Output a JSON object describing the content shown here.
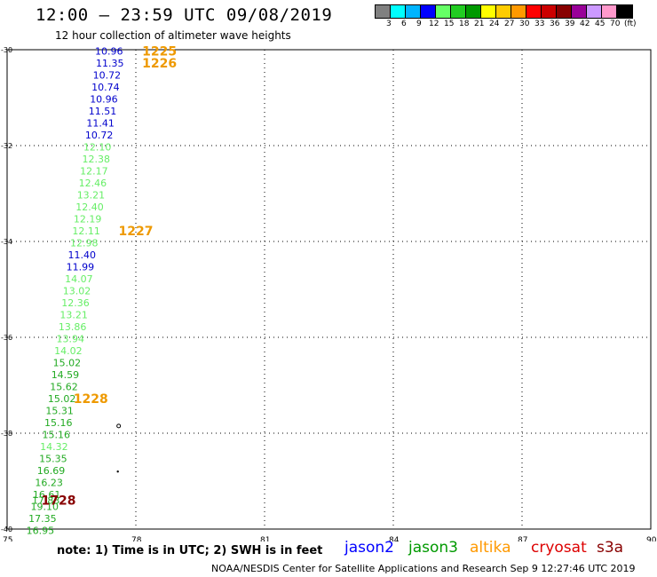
{
  "header": {
    "title": "12:00 — 23:59 UTC 09/08/2019",
    "subtitle": "12 hour collection of altimeter wave heights"
  },
  "legend": {
    "colors": [
      "#808080",
      "#00ffff",
      "#00b4ff",
      "#0000ff",
      "#66ff66",
      "#22cc22",
      "#009900",
      "#ffff00",
      "#ffcc00",
      "#ff9900",
      "#ff0000",
      "#cc0000",
      "#880000",
      "#990099",
      "#cc99ff",
      "#ff99cc",
      "#000000"
    ],
    "labels": [
      "3",
      "6",
      "9",
      "12",
      "15",
      "18",
      "21",
      "24",
      "27",
      "30",
      "33",
      "36",
      "39",
      "42",
      "45",
      "70",
      "(ft)"
    ]
  },
  "axes": {
    "lat_labels": [
      "-30",
      "-32",
      "-34",
      "-36",
      "-38",
      "-40"
    ],
    "lon_labels": [
      "75",
      "78",
      "81",
      "84",
      "87",
      "90"
    ]
  },
  "observations": [
    {
      "v": "10.96",
      "c": "#0000cc",
      "lon": 77.7,
      "lat": -30.03
    },
    {
      "v": "11.35",
      "c": "#0000cc",
      "lon": 77.72,
      "lat": -30.28
    },
    {
      "v": "10.72",
      "c": "#0000cc",
      "lon": 77.65,
      "lat": -30.53
    },
    {
      "v": "10.74",
      "c": "#0000cc",
      "lon": 77.62,
      "lat": -30.78
    },
    {
      "v": "10.96",
      "c": "#0000cc",
      "lon": 77.58,
      "lat": -31.03
    },
    {
      "v": "11.51",
      "c": "#0000cc",
      "lon": 77.55,
      "lat": -31.28
    },
    {
      "v": "11.41",
      "c": "#0000cc",
      "lon": 77.5,
      "lat": -31.53
    },
    {
      "v": "10.72",
      "c": "#0000cc",
      "lon": 77.47,
      "lat": -31.78
    },
    {
      "v": "12.10",
      "c": "#66ee66",
      "lon": 77.43,
      "lat": -32.03
    },
    {
      "v": "12.38",
      "c": "#66ee66",
      "lon": 77.4,
      "lat": -32.28
    },
    {
      "v": "12.17",
      "c": "#66ee66",
      "lon": 77.35,
      "lat": -32.53
    },
    {
      "v": "12.46",
      "c": "#66ee66",
      "lon": 77.32,
      "lat": -32.78
    },
    {
      "v": "13.21",
      "c": "#66ee66",
      "lon": 77.28,
      "lat": -33.03
    },
    {
      "v": "12.40",
      "c": "#66ee66",
      "lon": 77.25,
      "lat": -33.28
    },
    {
      "v": "12.19",
      "c": "#66ee66",
      "lon": 77.2,
      "lat": -33.53
    },
    {
      "v": "12.11",
      "c": "#66ee66",
      "lon": 77.17,
      "lat": -33.78
    },
    {
      "v": "12.98",
      "c": "#66ee66",
      "lon": 77.12,
      "lat": -34.03
    },
    {
      "v": "11.40",
      "c": "#0000cc",
      "lon": 77.07,
      "lat": -34.28
    },
    {
      "v": "11.99",
      "c": "#0000cc",
      "lon": 77.03,
      "lat": -34.53
    },
    {
      "v": "14.07",
      "c": "#66ee66",
      "lon": 77.0,
      "lat": -34.78
    },
    {
      "v": "13.02",
      "c": "#66ee66",
      "lon": 76.95,
      "lat": -35.03
    },
    {
      "v": "12.36",
      "c": "#66ee66",
      "lon": 76.92,
      "lat": -35.28
    },
    {
      "v": "13.21",
      "c": "#66ee66",
      "lon": 76.88,
      "lat": -35.53
    },
    {
      "v": "13.86",
      "c": "#66ee66",
      "lon": 76.85,
      "lat": -35.78
    },
    {
      "v": "13.94",
      "c": "#66ee66",
      "lon": 76.8,
      "lat": -36.03
    },
    {
      "v": "14.02",
      "c": "#66ee66",
      "lon": 76.75,
      "lat": -36.28
    },
    {
      "v": "15.02",
      "c": "#22aa22",
      "lon": 76.72,
      "lat": -36.53
    },
    {
      "v": "14.59",
      "c": "#22aa22",
      "lon": 76.68,
      "lat": -36.78
    },
    {
      "v": "15.62",
      "c": "#22aa22",
      "lon": 76.65,
      "lat": -37.03
    },
    {
      "v": "15.02",
      "c": "#22aa22",
      "lon": 76.6,
      "lat": -37.28
    },
    {
      "v": "15.31",
      "c": "#22aa22",
      "lon": 76.55,
      "lat": -37.53
    },
    {
      "v": "15.16",
      "c": "#22aa22",
      "lon": 76.52,
      "lat": -37.78
    },
    {
      "v": "15.16",
      "c": "#22aa22",
      "lon": 76.47,
      "lat": -38.03
    },
    {
      "v": "14.32",
      "c": "#66ee66",
      "lon": 76.42,
      "lat": -38.28
    },
    {
      "v": "15.35",
      "c": "#22aa22",
      "lon": 76.4,
      "lat": -38.53
    },
    {
      "v": "16.69",
      "c": "#22aa22",
      "lon": 76.35,
      "lat": -38.78
    },
    {
      "v": "16.23",
      "c": "#22aa22",
      "lon": 76.3,
      "lat": -39.03
    },
    {
      "v": "16.61",
      "c": "#22aa22",
      "lon": 76.25,
      "lat": -39.28
    },
    {
      "v": "17.83",
      "c": "#22aa22",
      "lon": 76.23,
      "lat": -39.4
    },
    {
      "v": "19.10",
      "c": "#22aa22",
      "lon": 76.2,
      "lat": -39.53
    },
    {
      "v": "17.35",
      "c": "#22aa22",
      "lon": 76.15,
      "lat": -39.78
    },
    {
      "v": "16.95",
      "c": "#22aa22",
      "lon": 76.1,
      "lat": -40.03
    }
  ],
  "time_labels": [
    {
      "t": "1225",
      "c": "#ee9900",
      "lon": 78.55,
      "lat": -30.03
    },
    {
      "t": "1226",
      "c": "#ee9900",
      "lon": 78.55,
      "lat": -30.28
    },
    {
      "t": "1227",
      "c": "#ee9900",
      "lon": 78.0,
      "lat": -33.78
    },
    {
      "t": "1228",
      "c": "#ee9900",
      "lon": 76.95,
      "lat": -37.28
    },
    {
      "t": "1728",
      "c": "#880000",
      "lon": 76.2,
      "lat": -39.4
    }
  ],
  "markers": [
    {
      "lon": 77.6,
      "lat": -37.85,
      "type": "ring"
    },
    {
      "lon": 77.58,
      "lat": -38.8,
      "type": "dot"
    }
  ],
  "note": "note: 1) Time is in UTC; 2) SWH is in feet",
  "satellites": [
    {
      "name": "jason2",
      "color": "#0000ff"
    },
    {
      "name": "jason3",
      "color": "#009900"
    },
    {
      "name": "altika",
      "color": "#ff9900"
    },
    {
      "name": "cryosat",
      "color": "#dd0000"
    },
    {
      "name": "s3a",
      "color": "#880000"
    }
  ],
  "footer": "NOAA/NESDIS Center for Satellite Applications and Research    Sep  9 12:27:46 UTC 2019"
}
